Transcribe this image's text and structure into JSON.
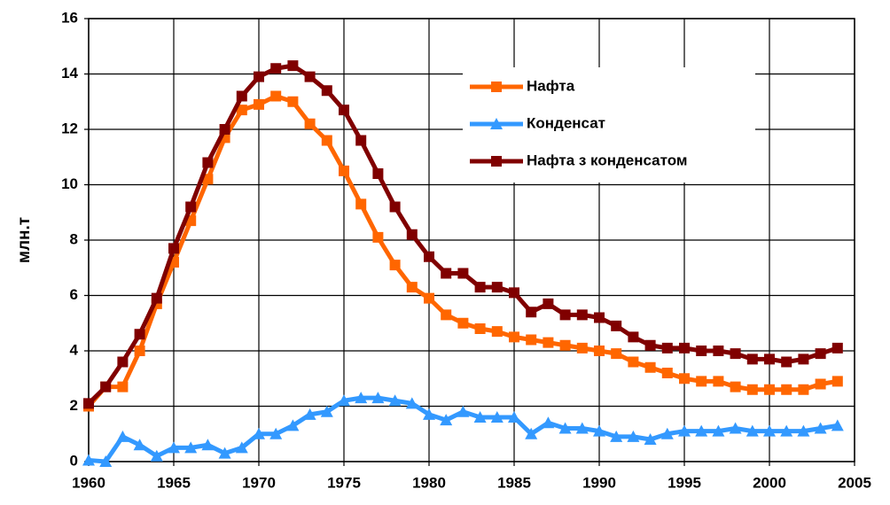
{
  "chart_data": {
    "type": "line",
    "y_label": "млн.т",
    "x": [
      1960,
      1961,
      1962,
      1963,
      1964,
      1965,
      1966,
      1967,
      1968,
      1969,
      1970,
      1971,
      1972,
      1973,
      1974,
      1975,
      1976,
      1977,
      1978,
      1979,
      1980,
      1981,
      1982,
      1983,
      1984,
      1985,
      1986,
      1987,
      1988,
      1989,
      1990,
      1991,
      1992,
      1993,
      1994,
      1995,
      1996,
      1997,
      1998,
      1999,
      2000,
      2001,
      2002,
      2003,
      2004
    ],
    "series": [
      {
        "name": "Нафта",
        "color": "#ff6600",
        "marker": "square",
        "values": [
          2.0,
          2.7,
          2.7,
          4.0,
          5.7,
          7.2,
          8.7,
          10.2,
          11.7,
          12.7,
          12.9,
          13.2,
          13.0,
          12.2,
          11.6,
          10.5,
          9.3,
          8.1,
          7.1,
          6.3,
          5.9,
          5.3,
          5.0,
          4.8,
          4.7,
          4.5,
          4.4,
          4.3,
          4.2,
          4.1,
          4.0,
          3.9,
          3.6,
          3.4,
          3.2,
          3.0,
          2.9,
          2.9,
          2.7,
          2.6,
          2.6,
          2.6,
          2.6,
          2.8,
          2.9
        ]
      },
      {
        "name": "Конденсат",
        "color": "#3399ff",
        "marker": "triangle",
        "values": [
          0.05,
          0.0,
          0.9,
          0.6,
          0.2,
          0.5,
          0.5,
          0.6,
          0.3,
          0.5,
          1.0,
          1.0,
          1.3,
          1.7,
          1.8,
          2.2,
          2.3,
          2.3,
          2.2,
          2.1,
          1.7,
          1.5,
          1.8,
          1.6,
          1.6,
          1.6,
          1.0,
          1.4,
          1.2,
          1.2,
          1.1,
          0.9,
          0.9,
          0.8,
          1.0,
          1.1,
          1.1,
          1.1,
          1.2,
          1.1,
          1.1,
          1.1,
          1.1,
          1.2,
          1.3
        ]
      },
      {
        "name": "Нафта з конденсатом",
        "color": "#800000",
        "marker": "square",
        "values": [
          2.1,
          2.7,
          3.6,
          4.6,
          5.9,
          7.7,
          9.2,
          10.8,
          12.0,
          13.2,
          13.9,
          14.2,
          14.3,
          13.9,
          13.4,
          12.7,
          11.6,
          10.4,
          9.2,
          8.2,
          7.4,
          6.8,
          6.8,
          6.3,
          6.3,
          6.1,
          5.4,
          5.7,
          5.3,
          5.3,
          5.2,
          4.9,
          4.5,
          4.2,
          4.1,
          4.1,
          4.0,
          4.0,
          3.9,
          3.7,
          3.7,
          3.6,
          3.7,
          3.9,
          4.1
        ]
      }
    ],
    "xlim": [
      1960,
      2005
    ],
    "xticks": [
      1960,
      1965,
      1970,
      1975,
      1980,
      1985,
      1990,
      1995,
      2000,
      2005
    ],
    "ylim": [
      0,
      16
    ],
    "yticks": [
      0,
      2,
      4,
      6,
      8,
      10,
      12,
      14,
      16
    ],
    "grid": true,
    "legend": "top-right"
  }
}
